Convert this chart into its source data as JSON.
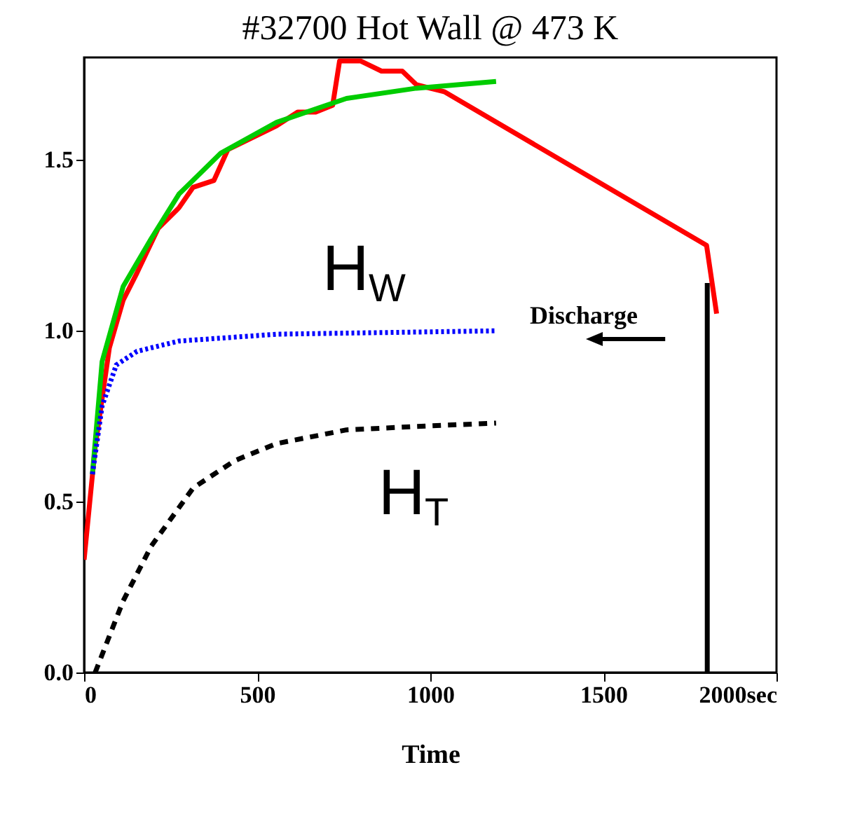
{
  "chart_data": {
    "type": "line",
    "title": "#32700 Hot Wall @ 473 K",
    "xlabel": "Time",
    "xlim": [
      0,
      2000
    ],
    "ylim": [
      0,
      1.8
    ],
    "xticks": [
      0,
      500,
      1000,
      1500,
      {
        "value": 2000,
        "label": "2000sec"
      }
    ],
    "yticks": [
      {
        "value": 0,
        "label": "0.0"
      },
      0.5,
      {
        "value": 1,
        "label": "1.0"
      },
      1.5
    ],
    "grid": false,
    "series": [
      {
        "color": "#ff0000",
        "x": [
          0,
          32,
          73,
          113,
          153,
          214,
          274,
          315,
          375,
          415,
          496,
          556,
          617,
          669,
          718,
          738,
          798,
          859,
          919,
          960,
          1040,
          1798,
          1827
        ],
        "values": [
          0.33,
          0.66,
          0.95,
          1.09,
          1.17,
          1.3,
          1.36,
          1.42,
          1.44,
          1.53,
          1.57,
          1.6,
          1.64,
          1.64,
          1.66,
          1.79,
          1.79,
          1.76,
          1.76,
          1.72,
          1.7,
          1.25,
          1.05
        ]
      },
      {
        "color": "#00cc00",
        "x": [
          24,
          52,
          113,
          194,
          274,
          395,
          556,
          758,
          960,
          1190
        ],
        "values": [
          0.58,
          0.91,
          1.13,
          1.27,
          1.4,
          1.52,
          1.61,
          1.68,
          1.71,
          1.73
        ]
      },
      {
        "color": "#0000ff",
        "line_style": "dotted",
        "x": [
          24,
          52,
          93,
          153,
          274,
          556,
          1190
        ],
        "values": [
          0.58,
          0.78,
          0.9,
          0.94,
          0.97,
          0.99,
          1.0
        ]
      },
      {
        "color": "#000000",
        "line_style": "dashed",
        "x": [
          32,
          113,
          194,
          315,
          435,
          556,
          758,
          960,
          1190
        ],
        "values": [
          0,
          0.21,
          0.37,
          0.54,
          0.62,
          0.67,
          0.71,
          0.72,
          0.73
        ]
      },
      {
        "color": "#000000",
        "x": [
          1800,
          1800
        ],
        "values": [
          0,
          1.14
        ]
      }
    ],
    "annotations": [
      "H$_{W}$",
      "H$_{T}$",
      "Discharge"
    ]
  }
}
